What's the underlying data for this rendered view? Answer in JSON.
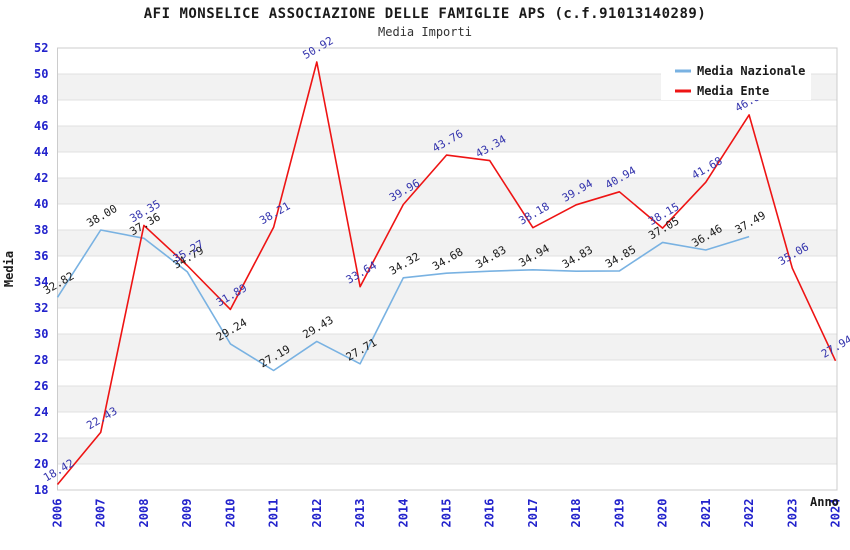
{
  "header": {
    "title": "AFI MONSELICE ASSOCIAZIONE DELLE FAMIGLIE APS (c.f.91013140289)",
    "subtitle": "Media Importi"
  },
  "chart_data": {
    "type": "line",
    "title": "AFI MONSELICE ASSOCIAZIONE DELLE FAMIGLIE APS (c.f.91013140289)",
    "subtitle": "Media Importi",
    "xlabel": "Anno",
    "ylabel": "Media",
    "ylim": [
      18,
      52
    ],
    "ytick_step": 2,
    "yticks": [
      18,
      20,
      22,
      24,
      26,
      28,
      30,
      32,
      34,
      36,
      38,
      40,
      42,
      44,
      46,
      48,
      50,
      52
    ],
    "xticks": [
      2006,
      2007,
      2008,
      2009,
      2010,
      2011,
      2012,
      2013,
      2014,
      2015,
      2016,
      2017,
      2018,
      2019,
      2020,
      2021,
      2022,
      2023,
      2024
    ],
    "grid": true,
    "legend_position": "top-right",
    "colors": {
      "tick_label": "#2222cc",
      "axis_title": "#1a1a1a",
      "gridline": "#e0e0e0",
      "plot_border": "#cccccc",
      "band_gray": "#f2f2f2",
      "band_white": "#ffffff",
      "legend_background": "#ffffff"
    },
    "series": [
      {
        "name": "Media Nazionale",
        "color": "#79b2e2",
        "label_color": "#1a1a1a",
        "x": [
          2006,
          2007,
          2008,
          2009,
          2010,
          2011,
          2012,
          2013,
          2014,
          2015,
          2016,
          2017,
          2018,
          2019,
          2020,
          2021,
          2022
        ],
        "values": [
          32.82,
          38.0,
          37.36,
          34.79,
          29.24,
          27.19,
          29.43,
          27.71,
          34.32,
          34.68,
          34.83,
          34.94,
          34.83,
          34.85,
          37.05,
          36.46,
          37.49
        ],
        "labels": [
          "32.82",
          "38.00",
          "37.36",
          "34.79",
          "29.24",
          "27.19",
          "29.43",
          "27.71",
          "34.32",
          "34.68",
          "34.83",
          "34.94",
          "34.83",
          "34.85",
          "37.05",
          "36.46",
          "37.49"
        ]
      },
      {
        "name": "Media Ente",
        "color": "#ee1414",
        "label_color": "#3434ad",
        "x": [
          2006,
          2007,
          2008,
          2009,
          2010,
          2011,
          2012,
          2013,
          2014,
          2015,
          2016,
          2017,
          2018,
          2019,
          2020,
          2021,
          2022,
          2023,
          2024
        ],
        "values": [
          18.42,
          22.43,
          38.35,
          35.27,
          31.89,
          38.21,
          50.92,
          33.64,
          39.96,
          43.76,
          43.34,
          38.18,
          39.94,
          40.94,
          38.15,
          41.68,
          46.85,
          35.06,
          27.94
        ],
        "labels": [
          "18.42",
          "22.43",
          "38.35",
          "35.27",
          "31.89",
          "38.21",
          "50.92",
          "33.64",
          "39.96",
          "43.76",
          "43.34",
          "38.18",
          "39.94",
          "40.94",
          "38.15",
          "41.68",
          "46.85",
          "35.06",
          "27.94"
        ],
        "label_occluded_by_legend_at_x": 2022
      }
    ]
  }
}
